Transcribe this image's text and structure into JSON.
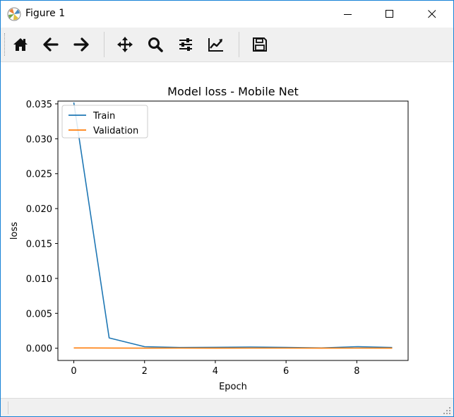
{
  "window": {
    "title": "Figure 1",
    "accent_color": "#1883d7",
    "controls": {
      "minimize_icon": "minimize-icon",
      "maximize_icon": "maximize-icon",
      "close_icon": "close-icon"
    }
  },
  "toolbar": {
    "buttons": [
      {
        "name": "home",
        "icon": "home-icon"
      },
      {
        "name": "back",
        "icon": "arrow-left-icon"
      },
      {
        "name": "forward",
        "icon": "arrow-right-icon"
      },
      {
        "name": "pan",
        "icon": "move-icon"
      },
      {
        "name": "zoom",
        "icon": "search-icon"
      },
      {
        "name": "configure-subplots",
        "icon": "sliders-icon"
      },
      {
        "name": "edit-axis",
        "icon": "line-chart-icon"
      },
      {
        "name": "save",
        "icon": "floppy-disk-icon"
      }
    ]
  },
  "chart_data": {
    "type": "line",
    "title": "Model loss - Mobile Net",
    "xlabel": "Epoch",
    "ylabel": "loss",
    "xlim": [
      -0.45,
      9.45
    ],
    "ylim": [
      -0.00175,
      0.0354
    ],
    "xticks": [
      0,
      2,
      4,
      6,
      8
    ],
    "xtick_labels": [
      "0",
      "2",
      "4",
      "6",
      "8"
    ],
    "yticks": [
      0,
      0.005,
      0.01,
      0.015,
      0.02,
      0.025,
      0.03,
      0.035
    ],
    "ytick_labels": [
      "0.000",
      "0.005",
      "0.010",
      "0.015",
      "0.020",
      "0.025",
      "0.030",
      "0.035"
    ],
    "grid": false,
    "legend_position": "upper left",
    "x": [
      0,
      1,
      2,
      3,
      4,
      5,
      6,
      7,
      8,
      9
    ],
    "series": [
      {
        "name": "Train",
        "color": "#1f77b4",
        "values": [
          0.0352,
          0.00148,
          0.00022,
          0.0001,
          0.00013,
          0.00017,
          0.00012,
          4e-05,
          0.00022,
          0.0001
        ]
      },
      {
        "name": "Validation",
        "color": "#ff7f0e",
        "values": [
          4e-05,
          3e-05,
          1e-05,
          2e-05,
          1e-05,
          2e-05,
          2e-05,
          1e-05,
          2e-05,
          1e-05
        ]
      }
    ]
  }
}
